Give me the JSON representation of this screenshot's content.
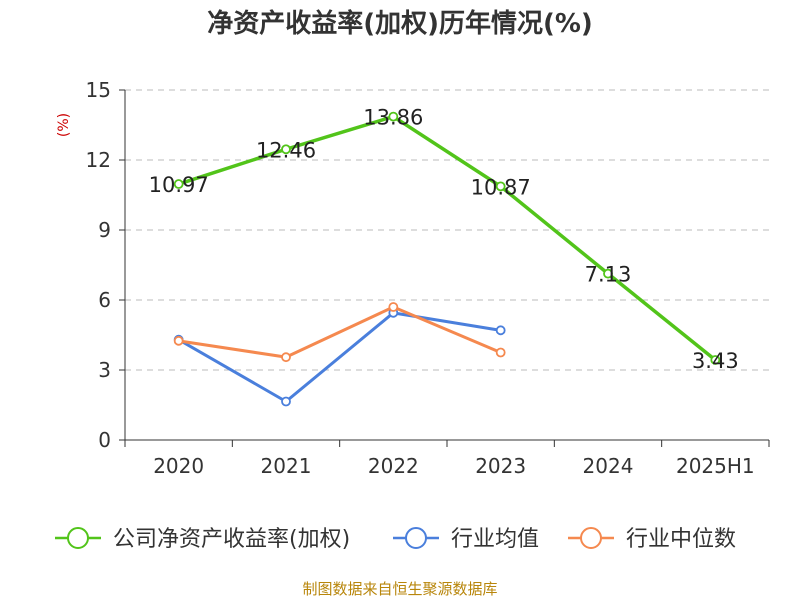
{
  "chart_data": {
    "type": "line",
    "title": "净资产收益率(加权)历年情况(%)",
    "ylabel": "(%)",
    "xlabel": "",
    "categories": [
      "2020",
      "2021",
      "2022",
      "2023",
      "2024",
      "2025H1"
    ],
    "ylim": [
      0,
      15
    ],
    "yticks": [
      0,
      3,
      6,
      9,
      12,
      15
    ],
    "grid": true,
    "legend_position": "bottom",
    "series": [
      {
        "name": "公司净资产收益率(加权)",
        "color": "#52c41a",
        "values": [
          10.97,
          12.46,
          13.86,
          10.87,
          7.13,
          3.43
        ],
        "data_labels": [
          "10.97",
          "12.46",
          "13.86",
          "10.87",
          "7.13",
          "3.43"
        ]
      },
      {
        "name": "行业均值",
        "color": "#4a7fdc",
        "values": [
          4.3,
          1.65,
          5.45,
          4.7,
          null,
          null
        ]
      },
      {
        "name": "行业中位数",
        "color": "#f5894f",
        "values": [
          4.25,
          3.55,
          5.7,
          3.75,
          null,
          null
        ]
      }
    ],
    "source": "制图数据来自恒生聚源数据库",
    "ylabel_color": "#cc0000",
    "source_color": "#b8860b"
  }
}
